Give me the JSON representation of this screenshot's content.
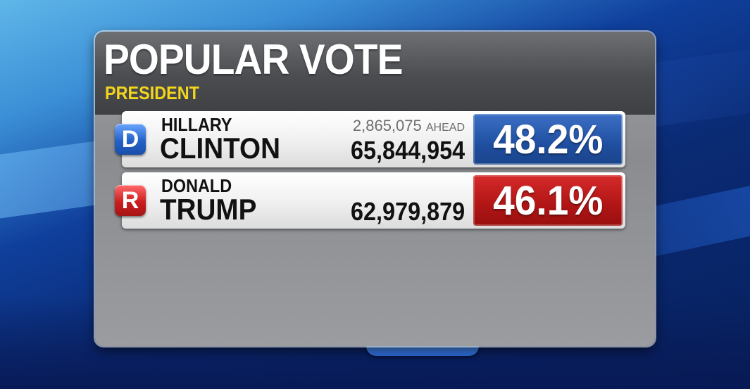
{
  "title": "POPULAR VOTE",
  "subtitle": "PRESIDENT",
  "candidates": [
    {
      "party_letter": "D",
      "first_name": "HILLARY",
      "last_name": "CLINTON",
      "ahead_margin": "2,865,075",
      "ahead_label": "AHEAD",
      "votes": "65,844,954",
      "percent": "48.2%",
      "color": "#1f4fa0"
    },
    {
      "party_letter": "R",
      "first_name": "DONALD",
      "last_name": "TRUMP",
      "votes": "62,979,879",
      "percent": "46.1%",
      "color": "#b01515"
    }
  ],
  "colors": {
    "title": "#ffffff",
    "subtitle": "#f2d51c",
    "democrat": "#1f4fa0",
    "republican": "#b01515"
  }
}
